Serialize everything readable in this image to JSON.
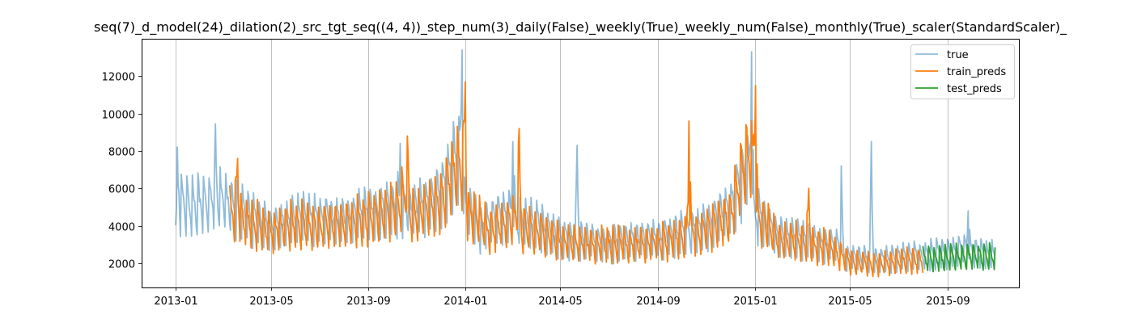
{
  "chart_data": {
    "type": "line",
    "title": "seq(7)_d_model(24)_dilation(2)_src_tgt_seq((4, 4))_step_num(3)_daily(False)_weekly(True)_weekly_num(False)_monthly(True)_scaler(StandardScaler)_",
    "xlabel": "",
    "ylabel": "",
    "x_ticks": [
      "2013-01",
      "2013-05",
      "2013-09",
      "2014-01",
      "2014-05",
      "2014-09",
      "2015-01",
      "2015-05",
      "2015-09"
    ],
    "y_ticks": [
      2000,
      4000,
      6000,
      8000,
      10000,
      12000
    ],
    "xlim": [
      "2012-11-19",
      "2015-11-30"
    ],
    "ylim": [
      700,
      14000
    ],
    "grid": "vertical",
    "legend_position": "top-right",
    "series": [
      {
        "name": "true",
        "color": "#1f77b4",
        "opacity": 0.5,
        "start": "2013-01-01",
        "end": "2015-10-31",
        "anchors": [
          [
            "2013-01-01",
            2000,
            1
          ],
          [
            "2013-01-03",
            8200,
            0
          ],
          [
            "2013-01-10",
            5200,
            1
          ],
          [
            "2013-02-10",
            5000,
            1
          ],
          [
            "2013-02-19",
            6000,
            1
          ],
          [
            "2013-02-20",
            9450,
            0
          ],
          [
            "2013-03-01",
            5300,
            1
          ],
          [
            "2013-04-01",
            4500,
            1
          ],
          [
            "2013-05-01",
            3800,
            1
          ],
          [
            "2013-06-01",
            4300,
            1
          ],
          [
            "2013-07-01",
            4400,
            1
          ],
          [
            "2013-08-01",
            4200,
            1
          ],
          [
            "2013-09-01",
            4600,
            1
          ],
          [
            "2013-10-01",
            4900,
            1
          ],
          [
            "2013-10-10",
            5200,
            1
          ],
          [
            "2013-10-11",
            8400,
            0
          ],
          [
            "2013-10-20",
            5000,
            1
          ],
          [
            "2013-11-01",
            4800,
            1
          ],
          [
            "2013-12-01",
            5600,
            1
          ],
          [
            "2013-12-20",
            7500,
            1
          ],
          [
            "2013-12-28",
            13400,
            0
          ],
          [
            "2014-01-05",
            5000,
            1
          ],
          [
            "2014-01-20",
            3700,
            1
          ],
          [
            "2014-02-01",
            4200,
            1
          ],
          [
            "2014-02-28",
            4800,
            1
          ],
          [
            "2014-03-02",
            8500,
            0
          ],
          [
            "2014-03-10",
            4200,
            1
          ],
          [
            "2014-04-01",
            4100,
            1
          ],
          [
            "2014-05-01",
            3300,
            1
          ],
          [
            "2014-05-20",
            3300,
            1
          ],
          [
            "2014-05-22",
            8300,
            0
          ],
          [
            "2014-06-01",
            3200,
            1
          ],
          [
            "2014-07-01",
            3000,
            1
          ],
          [
            "2014-08-01",
            3200,
            1
          ],
          [
            "2014-09-01",
            3300,
            1
          ],
          [
            "2014-10-01",
            3600,
            1
          ],
          [
            "2014-11-01",
            4000,
            1
          ],
          [
            "2014-12-01",
            4800,
            1
          ],
          [
            "2014-12-20",
            7000,
            1
          ],
          [
            "2014-12-28",
            13300,
            0
          ],
          [
            "2015-01-06",
            4500,
            1
          ],
          [
            "2015-02-01",
            3400,
            1
          ],
          [
            "2015-03-01",
            3300,
            1
          ],
          [
            "2015-04-01",
            3000,
            1
          ],
          [
            "2015-04-19",
            2900,
            1
          ],
          [
            "2015-04-20",
            7200,
            0
          ],
          [
            "2015-05-01",
            2300,
            1
          ],
          [
            "2015-05-26",
            2200,
            1
          ],
          [
            "2015-05-28",
            8500,
            0
          ],
          [
            "2015-06-10",
            2200,
            1
          ],
          [
            "2015-07-01",
            2300,
            1
          ],
          [
            "2015-08-01",
            2400,
            1
          ],
          [
            "2015-09-01",
            2600,
            1
          ],
          [
            "2015-09-25",
            2800,
            1
          ],
          [
            "2015-09-27",
            4800,
            0
          ],
          [
            "2015-10-05",
            2600,
            1
          ],
          [
            "2015-10-31",
            2400,
            1
          ]
        ]
      },
      {
        "name": "train_preds",
        "color": "#ff7f0e",
        "opacity": 1,
        "start": "2013-03-10",
        "end": "2015-08-01",
        "anchors": [
          [
            "2013-03-10",
            4800,
            1
          ],
          [
            "2013-03-20",
            7600,
            0
          ],
          [
            "2013-04-01",
            4300,
            1
          ],
          [
            "2013-05-01",
            3700,
            1
          ],
          [
            "2013-06-01",
            4100,
            1
          ],
          [
            "2013-07-01",
            4000,
            1
          ],
          [
            "2013-08-01",
            4100,
            1
          ],
          [
            "2013-09-01",
            4400,
            1
          ],
          [
            "2013-10-01",
            4800,
            1
          ],
          [
            "2013-10-15",
            5400,
            1
          ],
          [
            "2013-10-20",
            8800,
            0
          ],
          [
            "2013-11-01",
            4600,
            1
          ],
          [
            "2013-12-01",
            5400,
            1
          ],
          [
            "2013-12-20",
            7200,
            1
          ],
          [
            "2014-01-01",
            11700,
            0
          ],
          [
            "2014-01-10",
            4600,
            1
          ],
          [
            "2014-02-01",
            3700,
            1
          ],
          [
            "2014-03-05",
            4500,
            1
          ],
          [
            "2014-03-10",
            9200,
            0
          ],
          [
            "2014-03-20",
            3900,
            1
          ],
          [
            "2014-05-01",
            3200,
            1
          ],
          [
            "2014-06-01",
            3000,
            1
          ],
          [
            "2014-08-01",
            3000,
            1
          ],
          [
            "2014-09-01",
            3100,
            1
          ],
          [
            "2014-10-05",
            3400,
            1
          ],
          [
            "2014-10-10",
            9600,
            0
          ],
          [
            "2014-10-20",
            3600,
            1
          ],
          [
            "2014-12-01",
            4500,
            1
          ],
          [
            "2014-12-20",
            7500,
            1
          ],
          [
            "2015-01-02",
            11500,
            0
          ],
          [
            "2015-01-12",
            4200,
            1
          ],
          [
            "2015-02-01",
            3200,
            1
          ],
          [
            "2015-03-05",
            3200,
            1
          ],
          [
            "2015-03-10",
            6000,
            0
          ],
          [
            "2015-04-01",
            2900,
            1
          ],
          [
            "2015-05-01",
            2100,
            1
          ],
          [
            "2015-06-01",
            1950,
            1
          ],
          [
            "2015-07-01",
            2100,
            1
          ],
          [
            "2015-08-01",
            2200,
            1
          ]
        ]
      },
      {
        "name": "test_preds",
        "color": "#2ca02c",
        "opacity": 1,
        "start": "2015-08-01",
        "end": "2015-10-31",
        "anchors": [
          [
            "2015-08-01",
            2200,
            1
          ],
          [
            "2015-09-01",
            2250,
            1
          ],
          [
            "2015-10-01",
            2350,
            1
          ],
          [
            "2015-10-31",
            2300,
            1
          ]
        ]
      }
    ]
  }
}
